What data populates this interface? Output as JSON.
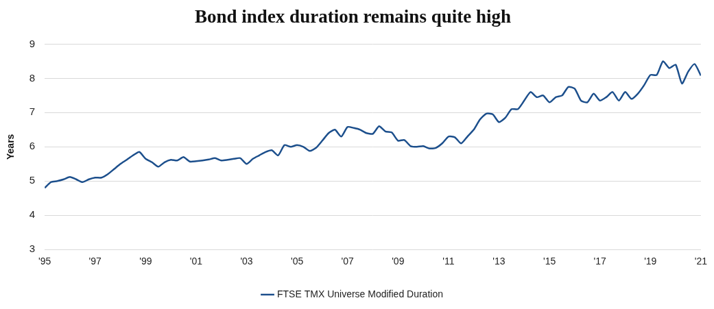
{
  "chart_data": {
    "type": "line",
    "title": "Bond index duration remains quite high",
    "y_label": "Years",
    "categories": [
      "'95",
      null,
      null,
      null,
      null,
      null,
      null,
      null,
      "'97",
      null,
      null,
      null,
      null,
      null,
      null,
      null,
      "'99",
      null,
      null,
      null,
      null,
      null,
      null,
      null,
      "'01",
      null,
      null,
      null,
      null,
      null,
      null,
      null,
      "'03",
      null,
      null,
      null,
      null,
      null,
      null,
      null,
      "'05",
      null,
      null,
      null,
      null,
      null,
      null,
      null,
      "'07",
      null,
      null,
      null,
      null,
      null,
      null,
      null,
      "'09",
      null,
      null,
      null,
      null,
      null,
      null,
      null,
      "'11",
      null,
      null,
      null,
      null,
      null,
      null,
      null,
      "'13",
      null,
      null,
      null,
      null,
      null,
      null,
      null,
      "'15",
      null,
      null,
      null,
      null,
      null,
      null,
      null,
      "'17",
      null,
      null,
      null,
      null,
      null,
      null,
      null,
      "'19",
      null,
      null,
      null,
      null,
      null,
      null,
      null,
      "'21"
    ],
    "series": [
      {
        "name": "FTSE TMX Universe Modified Duration",
        "color": "#1c4f8c",
        "marker": "none",
        "values": [
          4.8,
          4.97,
          5.0,
          5.05,
          5.12,
          5.05,
          4.97,
          5.05,
          5.1,
          5.1,
          5.2,
          5.35,
          5.5,
          5.62,
          5.75,
          5.85,
          5.65,
          5.55,
          5.42,
          5.55,
          5.62,
          5.6,
          5.7,
          5.57,
          5.58,
          5.6,
          5.63,
          5.67,
          5.6,
          5.62,
          5.65,
          5.67,
          5.5,
          5.65,
          5.75,
          5.85,
          5.9,
          5.75,
          6.05,
          6.0,
          6.05,
          6.0,
          5.88,
          5.97,
          6.18,
          6.4,
          6.5,
          6.3,
          6.58,
          6.55,
          6.5,
          6.4,
          6.38,
          6.6,
          6.45,
          6.42,
          6.18,
          6.2,
          6.02,
          6.0,
          6.02,
          5.95,
          5.97,
          6.1,
          6.3,
          6.28,
          6.1,
          6.3,
          6.5,
          6.8,
          6.97,
          6.95,
          6.72,
          6.85,
          7.1,
          7.1,
          7.35,
          7.6,
          7.45,
          7.5,
          7.3,
          7.45,
          7.5,
          7.75,
          7.7,
          7.35,
          7.3,
          7.55,
          7.35,
          7.45,
          7.6,
          7.35,
          7.6,
          7.4,
          7.55,
          7.8,
          8.1,
          8.1,
          8.5,
          8.3,
          8.4,
          7.85,
          8.2,
          8.42,
          8.08
        ]
      }
    ],
    "ylim": [
      3,
      9
    ],
    "yticks": [
      3,
      4,
      5,
      6,
      7,
      8,
      9
    ],
    "grid": true,
    "legend": "bottom"
  }
}
